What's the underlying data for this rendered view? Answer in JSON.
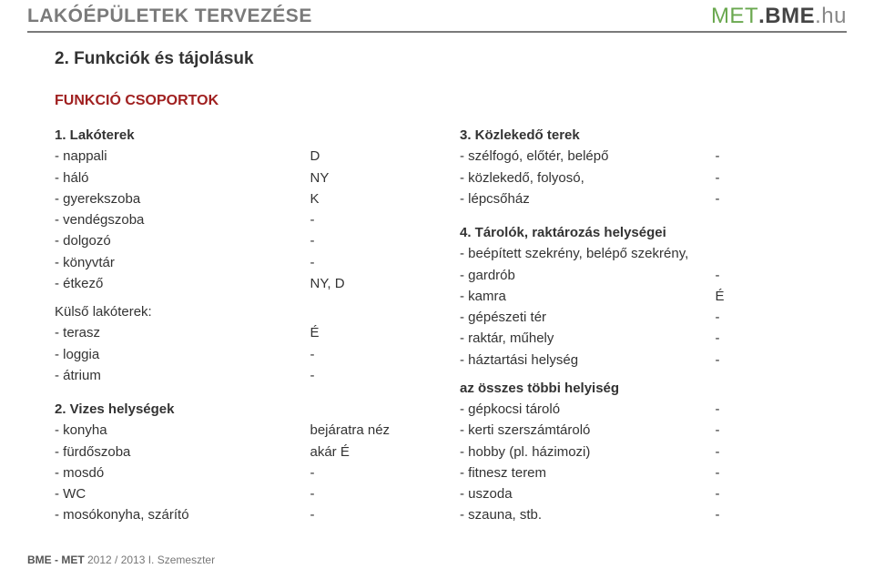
{
  "header": {
    "title": "LAKÓÉPÜLETEK TERVEZÉSE",
    "brand_met": "MET",
    "brand_dot": ".",
    "brand_bme": "BME",
    "brand_hu": ".hu"
  },
  "subtitle": "2. Funkciók és tájolásuk",
  "section_heading": "FUNKCIÓ CSOPORTOK",
  "left": {
    "g1_title": "1. Lakóterek",
    "g1": [
      {
        "l": "- nappali",
        "v": "D"
      },
      {
        "l": "- háló",
        "v": "NY"
      },
      {
        "l": "- gyerekszoba",
        "v": "K"
      },
      {
        "l": "- vendégszoba",
        "v": "-"
      },
      {
        "l": "- dolgozó",
        "v": "-"
      },
      {
        "l": "- könyvtár",
        "v": "-"
      },
      {
        "l": "- étkező",
        "v": "NY, D"
      }
    ],
    "g1b_title": "Külső lakóterek:",
    "g1b": [
      {
        "l": "- terasz",
        "v": "É"
      },
      {
        "l": "- loggia",
        "v": "-"
      },
      {
        "l": "- átrium",
        "v": "-"
      }
    ],
    "g2_title": "2. Vizes helységek",
    "g2": [
      {
        "l": "- konyha",
        "v": "bejáratra néz"
      },
      {
        "l": "- fürdőszoba",
        "v": "akár É"
      },
      {
        "l": "- mosdó",
        "v": "-"
      },
      {
        "l": "- WC",
        "v": "-"
      },
      {
        "l": "- mosókonyha, szárító",
        "v": "-"
      }
    ]
  },
  "right": {
    "g3_title": "3. Közlekedő terek",
    "g3": [
      {
        "l": "- szélfogó, előtér, belépő",
        "v": "-"
      },
      {
        "l": "- közlekedő, folyosó,",
        "v": "-"
      },
      {
        "l": "- lépcsőház",
        "v": "-"
      }
    ],
    "g4_title": "4. Tárolók, raktározás helységei",
    "g4": [
      {
        "l": "- beépített szekrény, belépő szekrény,",
        "v": ""
      },
      {
        "l": "- gardrób",
        "v": "-"
      },
      {
        "l": "- kamra",
        "v": "É"
      },
      {
        "l": "- gépészeti tér",
        "v": "-"
      },
      {
        "l": "- raktár, műhely",
        "v": "-"
      },
      {
        "l": "- háztartási helység",
        "v": "-"
      }
    ],
    "note_title": "az összes többi helyiség",
    "note_items": [
      {
        "l": "- gépkocsi tároló",
        "v": "-"
      },
      {
        "l": "- kerti szerszámtároló",
        "v": "-"
      },
      {
        "l": "- hobby (pl. házimozi)",
        "v": "-"
      },
      {
        "l": "- fitnesz terem",
        "v": "-"
      },
      {
        "l": "- uszoda",
        "v": "-"
      },
      {
        "l": "- szauna, stb.",
        "v": "-"
      }
    ]
  },
  "footer": {
    "part1": "BME - MET ",
    "part2": "2012 / 2013 I. Szemeszter"
  }
}
